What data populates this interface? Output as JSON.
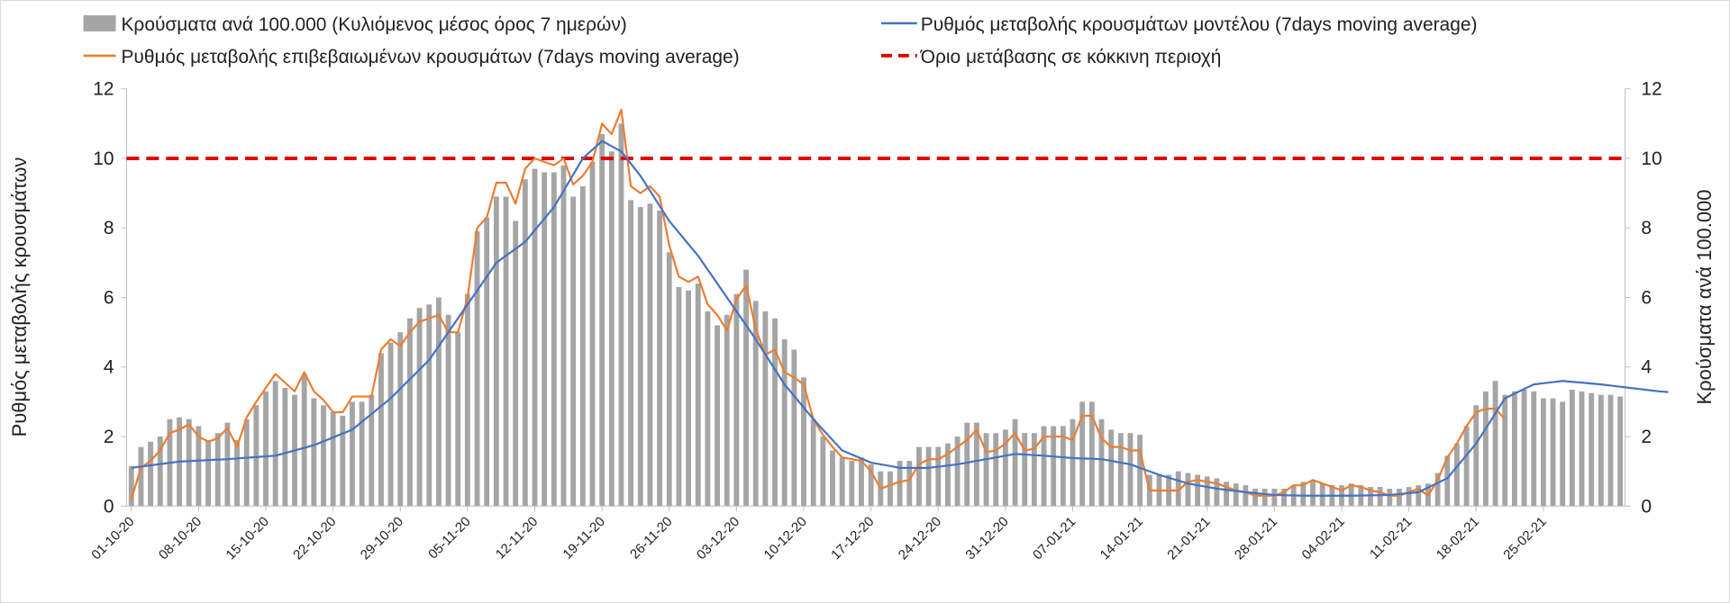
{
  "chart_data": {
    "type": "bar+line",
    "title": "",
    "ylabel_left": "Ρυθμός μεταβολής κρουσμάτων",
    "ylabel_right": "Κρούσματα ανά 100.000",
    "ylim_left": [
      0,
      12
    ],
    "ylim_right": [
      0,
      12
    ],
    "yticks": [
      "0",
      "2",
      "4",
      "6",
      "8",
      "10",
      "12"
    ],
    "xtick_labels": [
      "01-10-20",
      "08-10-20",
      "15-10-20",
      "22-10-20",
      "29-10-20",
      "05-11-20",
      "12-11-20",
      "19-11-20",
      "26-11-20",
      "03-12-20",
      "10-12-20",
      "17-12-20",
      "24-12-20",
      "31-12-20",
      "07-01-21",
      "14-01-21",
      "21-01-21",
      "28-01-21",
      "04-02-21",
      "11-02-21",
      "18-02-21",
      "25-02-21"
    ],
    "legend": {
      "bars": "Κρούσματα ανά 100.000 (Κυλιόμενος μέσος όρος 7 ημερών)",
      "model": "Ρυθμός μεταβολής κρουσμάτων μοντέλου (7days moving average)",
      "confirmed": "Ρυθμός μεταβολής επιβεβαιωμένων κρουσμάτων (7days moving average)",
      "threshold": "Όριο μετάβασης σε κόκκινη περιοχή"
    },
    "colors": {
      "bars": "#a5a5a5",
      "model": "#4472c4",
      "confirmed": "#ed7d31",
      "threshold": "#e00000"
    },
    "threshold": 10,
    "series": [
      {
        "name": "Κρούσματα ανά 100.000 (Κυλιόμενος μέσος όρος 7 ημερών)",
        "kind": "bar",
        "values": [
          1.15,
          1.7,
          1.85,
          2.0,
          2.5,
          2.55,
          2.5,
          2.3,
          1.9,
          2.1,
          2.4,
          1.9,
          2.5,
          2.9,
          3.3,
          3.6,
          3.4,
          3.2,
          3.8,
          3.1,
          2.9,
          2.7,
          2.6,
          3.0,
          3.0,
          3.2,
          4.4,
          4.7,
          5.0,
          5.4,
          5.7,
          5.8,
          6.0,
          5.5,
          5.0,
          6.1,
          7.9,
          8.3,
          8.9,
          8.9,
          8.2,
          9.4,
          9.7,
          9.6,
          9.6,
          9.8,
          8.9,
          9.2,
          9.9,
          10.7,
          10.2,
          11.0,
          8.8,
          8.6,
          8.7,
          8.5,
          7.3,
          6.3,
          6.2,
          6.4,
          5.6,
          5.2,
          5.5,
          6.1,
          6.8,
          5.9,
          5.6,
          5.4,
          4.8,
          4.5,
          3.7,
          2.5,
          2.0,
          1.6,
          1.4,
          1.3,
          1.4,
          1.2,
          1.0,
          1.0,
          1.3,
          1.3,
          1.7,
          1.7,
          1.7,
          1.8,
          2.0,
          2.4,
          2.4,
          2.1,
          2.1,
          2.2,
          2.5,
          2.1,
          2.1,
          2.3,
          2.3,
          2.3,
          2.5,
          3.0,
          3.0,
          2.5,
          2.2,
          2.1,
          2.1,
          2.05,
          0.9,
          0.9,
          0.9,
          1.0,
          0.95,
          0.9,
          0.85,
          0.8,
          0.7,
          0.65,
          0.6,
          0.5,
          0.5,
          0.5,
          0.5,
          0.6,
          0.7,
          0.75,
          0.65,
          0.6,
          0.6,
          0.65,
          0.6,
          0.55,
          0.55,
          0.5,
          0.5,
          0.55,
          0.6,
          0.65,
          0.95,
          1.45,
          1.8,
          2.3,
          2.9,
          3.3,
          3.6,
          3.2,
          3.3,
          3.35,
          3.3,
          3.1,
          3.1,
          3.0,
          3.35,
          3.3,
          3.25,
          3.2,
          3.2,
          3.15
        ]
      },
      {
        "name": "Ρυθμός μεταβολής κρουσμάτων μοντέλου (7days moving average)",
        "kind": "line",
        "points": [
          [
            0,
            1.1
          ],
          [
            5,
            1.28
          ],
          [
            10,
            1.35
          ],
          [
            15,
            1.45
          ],
          [
            19,
            1.75
          ],
          [
            23,
            2.2
          ],
          [
            27,
            3.1
          ],
          [
            31,
            4.2
          ],
          [
            35,
            5.8
          ],
          [
            38,
            7.0
          ],
          [
            41,
            7.6
          ],
          [
            44,
            8.6
          ],
          [
            47,
            10.0
          ],
          [
            49,
            10.5
          ],
          [
            51,
            10.2
          ],
          [
            53,
            9.5
          ],
          [
            56,
            8.2
          ],
          [
            59,
            7.2
          ],
          [
            62,
            6.0
          ],
          [
            65,
            4.8
          ],
          [
            68,
            3.5
          ],
          [
            71,
            2.5
          ],
          [
            74,
            1.6
          ],
          [
            77,
            1.25
          ],
          [
            80,
            1.1
          ],
          [
            83,
            1.1
          ],
          [
            86,
            1.2
          ],
          [
            89,
            1.35
          ],
          [
            92,
            1.5
          ],
          [
            95,
            1.45
          ],
          [
            98,
            1.38
          ],
          [
            101,
            1.35
          ],
          [
            104,
            1.2
          ],
          [
            107,
            0.9
          ],
          [
            110,
            0.65
          ],
          [
            113,
            0.5
          ],
          [
            116,
            0.4
          ],
          [
            119,
            0.32
          ],
          [
            122,
            0.3
          ],
          [
            127,
            0.3
          ],
          [
            131,
            0.32
          ],
          [
            134,
            0.4
          ],
          [
            137,
            0.8
          ],
          [
            140,
            1.8
          ],
          [
            143,
            3.1
          ],
          [
            146,
            3.5
          ],
          [
            149,
            3.6
          ],
          [
            153,
            3.5
          ],
          [
            156,
            3.4
          ],
          [
            159,
            3.3
          ],
          [
            160,
            3.28
          ]
        ]
      },
      {
        "name": "Ρυθμός μεταβολής επιβεβαιωμένων κρουσμάτων (7days moving average)",
        "kind": "line",
        "values": [
          0.2,
          1.1,
          1.3,
          1.6,
          2.1,
          2.2,
          2.35,
          2.0,
          1.85,
          1.95,
          2.25,
          1.7,
          2.55,
          3.0,
          3.4,
          3.8,
          3.55,
          3.3,
          3.85,
          3.3,
          3.05,
          2.7,
          2.7,
          3.15,
          3.15,
          3.15,
          4.5,
          4.8,
          4.6,
          5.0,
          5.3,
          5.4,
          5.5,
          5.0,
          5.0,
          6.0,
          8.0,
          8.3,
          9.3,
          9.3,
          8.7,
          9.7,
          10.0,
          9.9,
          9.8,
          10.0,
          9.25,
          9.5,
          9.9,
          11.0,
          10.7,
          11.4,
          9.2,
          9.0,
          9.2,
          8.9,
          7.5,
          6.6,
          6.45,
          6.6,
          5.8,
          5.5,
          5.05,
          5.95,
          6.35,
          5.1,
          4.35,
          4.5,
          3.85,
          3.7,
          3.5,
          2.5,
          2.05,
          1.7,
          1.4,
          1.35,
          1.3,
          1.0,
          0.5,
          0.6,
          0.7,
          0.75,
          1.2,
          1.35,
          1.35,
          1.5,
          1.7,
          1.9,
          2.2,
          1.55,
          1.6,
          1.8,
          2.1,
          1.6,
          1.65,
          2.0,
          2.0,
          2.0,
          1.9,
          2.6,
          2.6,
          1.95,
          1.7,
          1.7,
          1.6,
          1.6,
          0.45,
          0.45,
          0.45,
          0.45,
          0.7,
          0.75,
          0.7,
          0.65,
          0.55,
          0.45,
          0.4,
          0.3,
          0.3,
          0.3,
          0.4,
          0.6,
          0.6,
          0.75,
          0.65,
          0.55,
          0.45,
          0.6,
          0.55,
          0.45,
          0.4,
          0.3,
          0.3,
          0.4,
          0.5,
          0.3,
          0.75,
          1.4,
          1.8,
          2.3,
          2.7,
          2.8,
          2.8,
          2.5
        ]
      }
    ]
  }
}
